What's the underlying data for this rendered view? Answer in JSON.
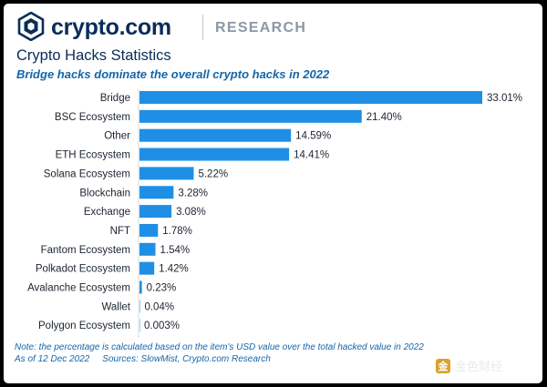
{
  "header": {
    "brand": "crypto.com",
    "divider_label": "RESEARCH",
    "logo_icon": "crypto-com-lion-shield-icon"
  },
  "title": "Crypto Hacks Statistics",
  "subtitle": "Bridge hacks dominate the overall crypto hacks in 2022",
  "chart_data": {
    "type": "bar",
    "orientation": "horizontal",
    "categories": [
      "Bridge",
      "BSC Ecosystem",
      "Other",
      "ETH Ecosystem",
      "Solana Ecosystem",
      "Blockchain",
      "Exchange",
      "NFT",
      "Fantom Ecosystem",
      "Polkadot Ecosystem",
      "Avalanche Ecosystem",
      "Wallet",
      "Polygon Ecosystem"
    ],
    "values": [
      33.01,
      21.4,
      14.59,
      14.41,
      5.22,
      3.28,
      3.08,
      1.78,
      1.54,
      1.42,
      0.23,
      0.04,
      0.003
    ],
    "value_labels": [
      "33.01%",
      "21.40%",
      "14.59%",
      "14.41%",
      "5.22%",
      "3.28%",
      "3.08%",
      "1.78%",
      "1.54%",
      "1.42%",
      "0.23%",
      "0.04%",
      "0.003%"
    ],
    "unit": "%",
    "xlim": [
      0,
      33.01
    ],
    "bar_color": "#1f8fe5",
    "grid": false,
    "legend": "none"
  },
  "footnotes": {
    "note": "Note: the percentage is calculated based on the item's USD value over the total hacked value in 2022",
    "as_of": "As of 12 Dec 2022",
    "sources": "Sources: SlowMist, Crypto.com Research"
  },
  "watermark": {
    "icon": "jinse-logo-icon",
    "icon_glyph": "金",
    "text": "金色财经"
  },
  "colors": {
    "brand_navy": "#0a2d5a",
    "accent_blue": "#1565a8",
    "bar": "#1f8fe5"
  }
}
